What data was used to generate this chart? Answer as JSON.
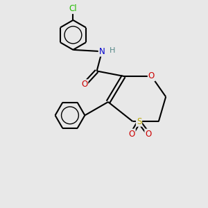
{
  "background_color": "#e8e8e8",
  "atom_colors": {
    "C": "#000000",
    "N": "#0000cd",
    "O": "#cc0000",
    "S": "#bbaa00",
    "Cl": "#22bb00",
    "H": "#558888"
  },
  "figsize": [
    3.0,
    3.0
  ],
  "dpi": 100
}
